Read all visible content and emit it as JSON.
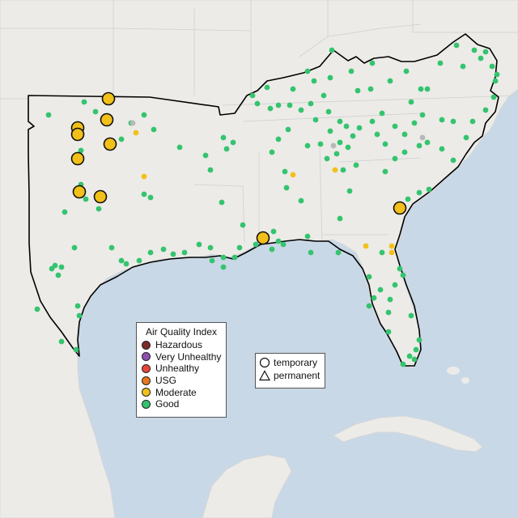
{
  "legend": {
    "title": "Air Quality Index",
    "categories": [
      {
        "label": "Hazardous",
        "color": "#7e2a2a"
      },
      {
        "label": "Very Unhealthy",
        "color": "#8f4fb0"
      },
      {
        "label": "Unhealthy",
        "color": "#e8463a"
      },
      {
        "label": "USG",
        "color": "#e87722"
      },
      {
        "label": "Moderate",
        "color": "#f2c019"
      },
      {
        "label": "Good",
        "color": "#34c46e"
      }
    ]
  },
  "site_legend": {
    "temporary": "temporary",
    "permanent": "permanent"
  },
  "colors": {
    "ocean": "#c9d8e6",
    "land": "#ecebe8",
    "region_outline": "#000000",
    "good": "#34c46e",
    "moderate": "#f2c019",
    "no_data": "#b8b8b8"
  }
}
